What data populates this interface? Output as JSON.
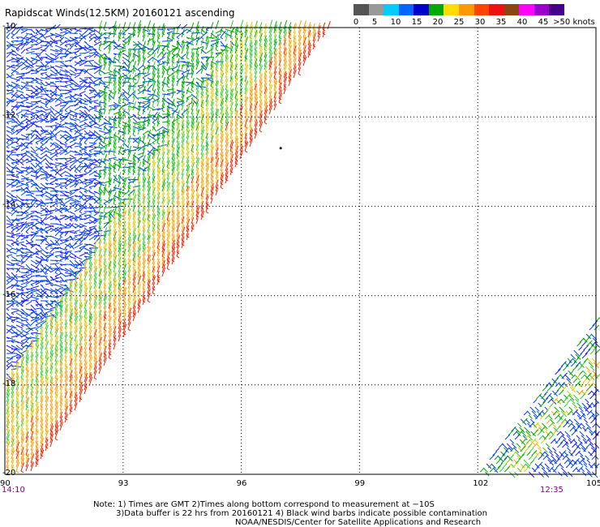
{
  "title": "Rapidscat Winds(12.5KM) 20160121 ascending",
  "colorbar": {
    "colors": [
      "#555555",
      "#999999",
      "#00ccff",
      "#0066ff",
      "#0000cc",
      "#00aa00",
      "#ffdd00",
      "#ff9900",
      "#ff4400",
      "#ee1111",
      "#8b4513",
      "#ff00ff",
      "#9900cc",
      "#440088"
    ],
    "labels": [
      "0",
      "5",
      "10",
      "15",
      "20",
      "25",
      "30",
      "35",
      "40",
      "45",
      ">50 knots"
    ],
    "label_positions": [
      0,
      5,
      10,
      15,
      20,
      25,
      30,
      35,
      40,
      45,
      50
    ]
  },
  "map": {
    "lon_range": [
      90,
      105
    ],
    "lat_range": [
      -10,
      -20
    ],
    "x_ticks": [
      "90",
      "93",
      "96",
      "99",
      "102",
      "105"
    ],
    "y_ticks": [
      "-10",
      "-12",
      "-14",
      "-16",
      "-18",
      "-20"
    ],
    "start_time": "14:10",
    "end_time": "12:35",
    "gridlines": true
  },
  "notes": {
    "line1": "Note: 1) Times are GMT 2)Times along bottom correspond to measurement at −10S",
    "line2": "3)Data buffer is 22 hrs from 20160121 4) Black wind barbs indicate possible contamination",
    "line3": "NOAA/NESDIS/Center for Satellite Applications and Research"
  }
}
